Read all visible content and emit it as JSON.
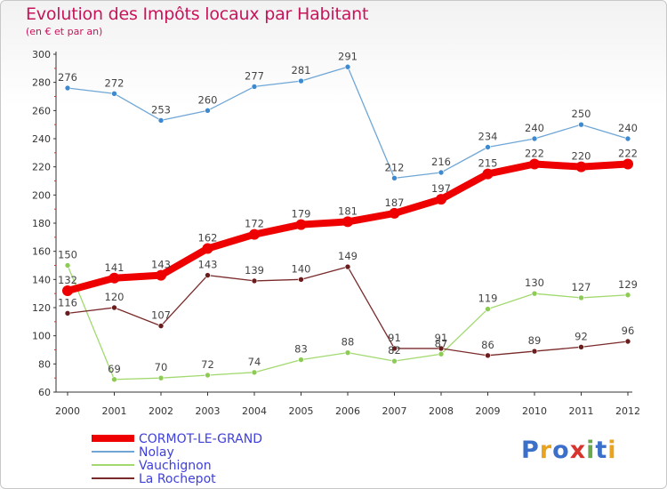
{
  "header": {
    "title": "Evolution des Impôts locaux par Habitant",
    "subtitle": "(en € et par an)"
  },
  "logo": {
    "text": "Proxiti",
    "letters": [
      {
        "ch": "P",
        "color": "#3b6fc9"
      },
      {
        "ch": "r",
        "color": "#e8a320"
      },
      {
        "ch": "o",
        "color": "#3b6fc9"
      },
      {
        "ch": "x",
        "color": "#d8342e"
      },
      {
        "ch": "i",
        "color": "#6aa84f"
      },
      {
        "ch": "t",
        "color": "#3b6fc9"
      },
      {
        "ch": "i",
        "color": "#e8a320"
      }
    ]
  },
  "chart_data": {
    "type": "line",
    "title": "Evolution des Impôts locaux par Habitant",
    "ylabel": "(en € et par an)",
    "xlabel": "",
    "x": [
      "2000",
      "2001",
      "2002",
      "2003",
      "2004",
      "2005",
      "2006",
      "2007",
      "2008",
      "2009",
      "2010",
      "2011",
      "2012"
    ],
    "ylim": [
      60,
      300
    ],
    "yticks": [
      60,
      80,
      100,
      120,
      140,
      160,
      180,
      200,
      220,
      240,
      260,
      280,
      300
    ],
    "grid": false,
    "legend_position": "bottom-left",
    "series": [
      {
        "name": "Nolay",
        "color": "#6fa6d6",
        "point_color": "#3d8ad0",
        "values": [
          276,
          272,
          253,
          260,
          277,
          281,
          291,
          212,
          216,
          234,
          240,
          250,
          240
        ]
      },
      {
        "name": "Vauchignon",
        "color": "#a2d96f",
        "point_color": "#8ccc55",
        "values": [
          150,
          69,
          70,
          72,
          74,
          83,
          88,
          82,
          87,
          119,
          130,
          127,
          129
        ]
      },
      {
        "name": "La Rochepot",
        "color": "#7a2a2a",
        "point_color": "#6b1c1c",
        "values": [
          116,
          120,
          107,
          143,
          139,
          140,
          149,
          91,
          91,
          86,
          89,
          92,
          96
        ]
      },
      {
        "name": "CORMOT-LE-GRAND",
        "color": "#ee0000",
        "point_color": "#ee0000",
        "values": [
          132,
          141,
          143,
          162,
          172,
          179,
          181,
          187,
          197,
          215,
          222,
          220,
          222
        ]
      }
    ],
    "legend_order": [
      "CORMOT-LE-GRAND",
      "Nolay",
      "Vauchignon",
      "La Rochepot"
    ],
    "legend_text_color": "#3f3fdc",
    "axis_color": "#333333"
  }
}
